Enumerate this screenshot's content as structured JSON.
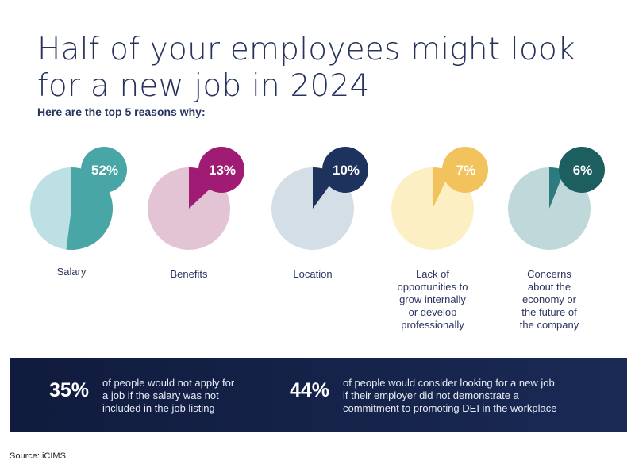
{
  "header": {
    "title_lines": [
      "Half of your employees might look",
      "for a new job in 2024"
    ],
    "subtitle": "Here are the top 5 reasons why:"
  },
  "chart_data": {
    "type": "pie",
    "title": "Half of your employees might look for a new job in 2024",
    "subtitle": "Here are the top 5 reasons why:",
    "series": [
      {
        "name": "Salary",
        "label_lines": [
          "Salary"
        ],
        "value": 52,
        "display": "52%",
        "color": "#48a6a7",
        "bg_color": "#bde0e4",
        "badge_color": "#48a6a7"
      },
      {
        "name": "Benefits",
        "label_lines": [
          "Benefits"
        ],
        "value": 13,
        "display": "13%",
        "color": "#a01c74",
        "bg_color": "#e2c4d4",
        "badge_color": "#a01c74"
      },
      {
        "name": "Location",
        "label_lines": [
          "Location"
        ],
        "value": 10,
        "display": "10%",
        "color": "#1e325e",
        "bg_color": "#d4dee6",
        "badge_color": "#1e325e"
      },
      {
        "name": "Lack of opportunities to grow internally or develop professionally",
        "label_lines": [
          "Lack of",
          "opportunities to",
          "grow internally",
          "or develop",
          "professionally"
        ],
        "value": 7,
        "display": "7%",
        "color": "#f2c25c",
        "bg_color": "#fdefc4",
        "badge_color": "#f2c25c"
      },
      {
        "name": "Concerns about the economy or the future of the company",
        "label_lines": [
          "Concerns",
          "about the",
          "economy or",
          "the future of",
          "the company"
        ],
        "value": 6,
        "display": "6%",
        "color": "#2c7b7f",
        "bg_color": "#bfd8da",
        "badge_color": "#1d5e61"
      }
    ],
    "unit": "%"
  },
  "banner": {
    "stats": [
      {
        "value": "35%",
        "lines": [
          "of people would not apply for",
          "a job if the salary was not",
          "included in the job listing"
        ]
      },
      {
        "value": "44%",
        "lines": [
          "of people would consider looking for a new job",
          "if their employer did not demonstrate a",
          "commitment to promoting DEI in the workplace"
        ]
      }
    ]
  },
  "footer": {
    "source": "Source: iCIMS"
  }
}
